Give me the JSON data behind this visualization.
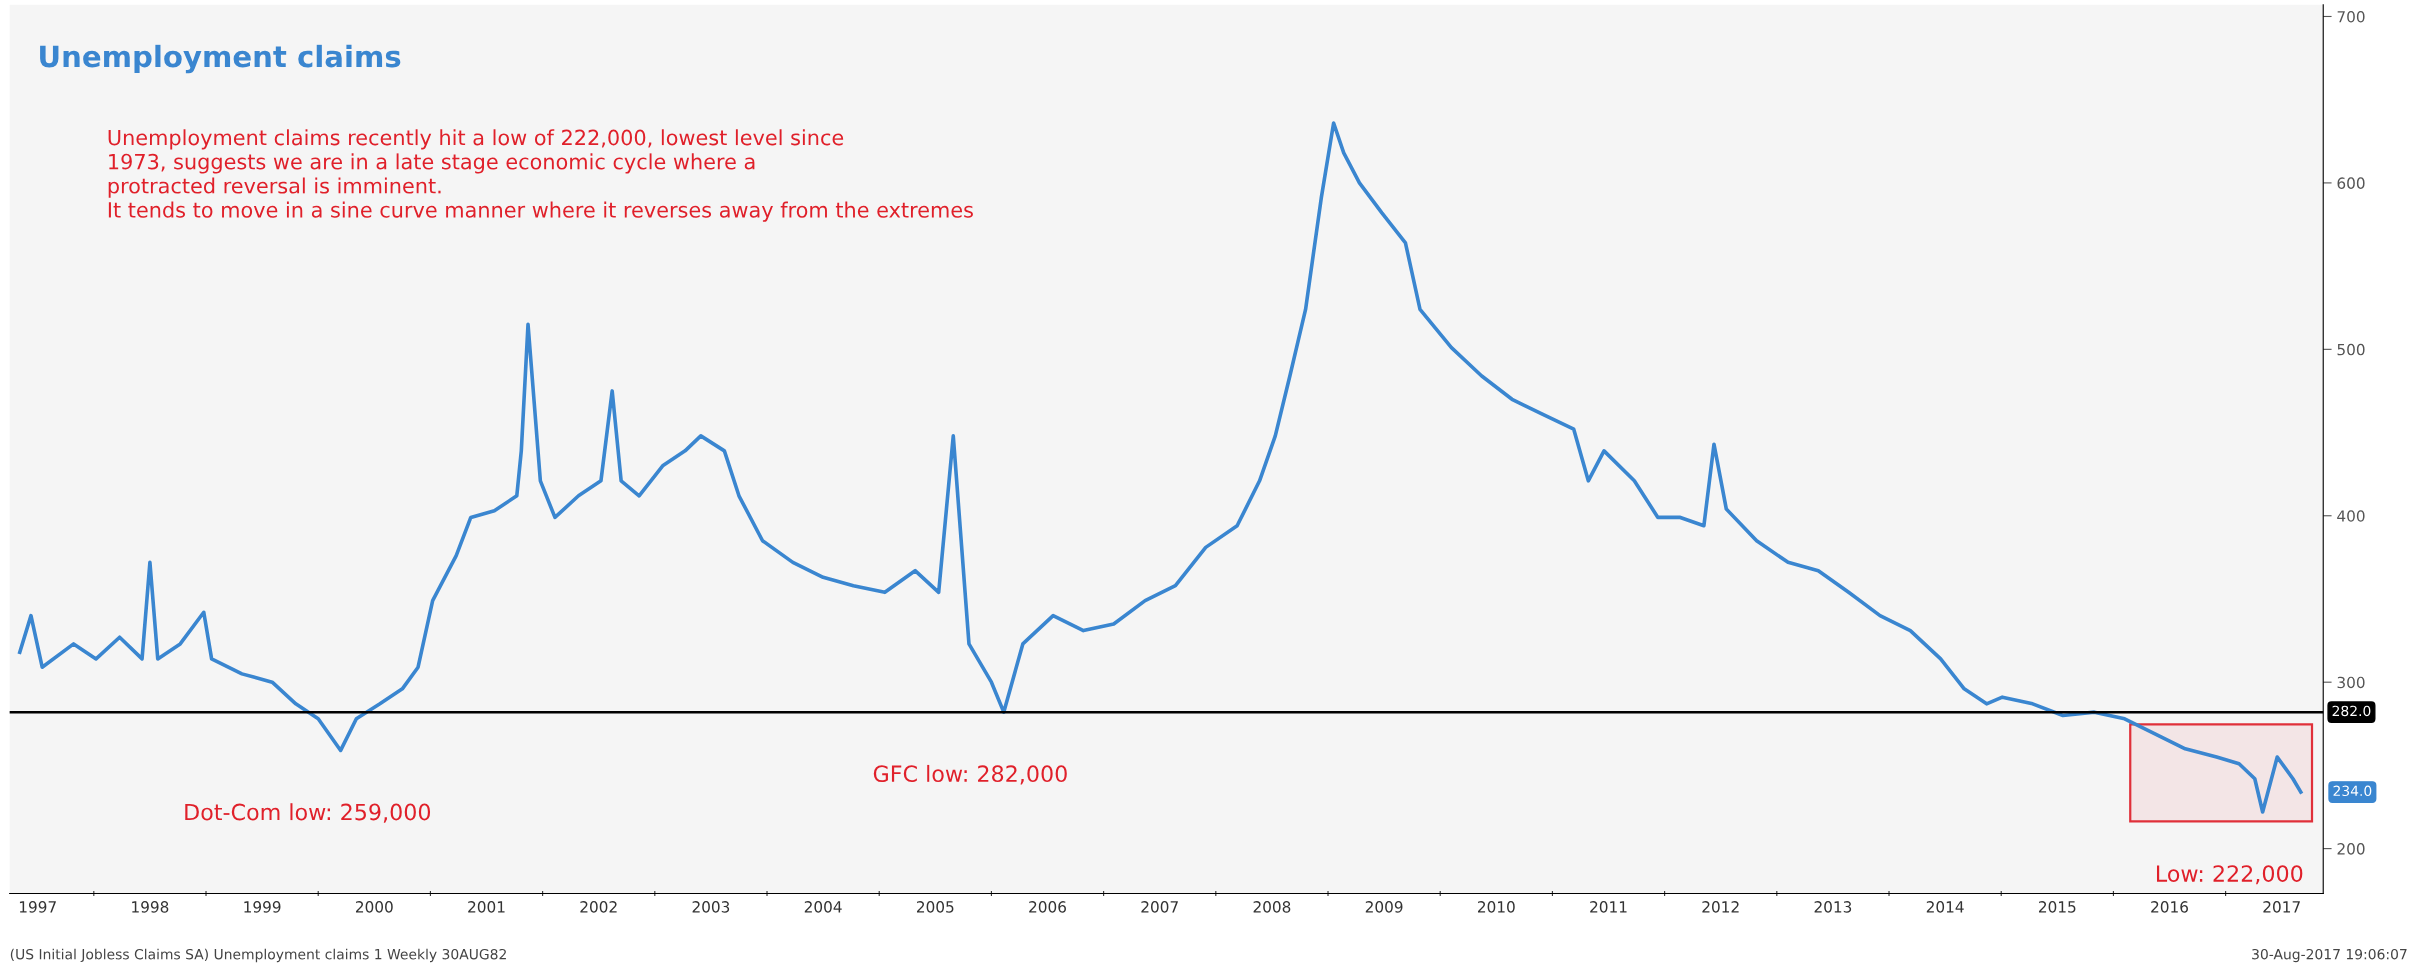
{
  "chart_data": {
    "type": "line",
    "title": "Unemployment claims",
    "x": [
      1997.34,
      1997.44,
      1997.54,
      1997.82,
      1998.02,
      1998.23,
      1998.43,
      1998.5,
      1998.57,
      1998.77,
      1998.98,
      1999.05,
      1999.32,
      1999.59,
      1999.8,
      2000.0,
      2000.2,
      2000.34,
      2000.55,
      2000.75,
      2000.89,
      2001.02,
      2001.23,
      2001.36,
      2001.57,
      2001.77,
      2001.81,
      2001.87,
      2001.98,
      2002.11,
      2002.32,
      2002.52,
      2002.62,
      2002.7,
      2002.86,
      2003.07,
      2003.27,
      2003.41,
      2003.62,
      2003.75,
      2003.96,
      2004.23,
      2004.5,
      2004.77,
      2005.05,
      2005.32,
      2005.53,
      2005.66,
      2005.8,
      2006.0,
      2006.11,
      2006.28,
      2006.55,
      2006.82,
      2007.09,
      2007.37,
      2007.64,
      2007.91,
      2008.19,
      2008.39,
      2008.53,
      2008.66,
      2008.8,
      2008.94,
      2009.05,
      2009.14,
      2009.28,
      2009.48,
      2009.69,
      2009.82,
      2010.1,
      2010.37,
      2010.64,
      2010.91,
      2011.19,
      2011.32,
      2011.46,
      2011.73,
      2011.94,
      2012.14,
      2012.35,
      2012.44,
      2012.55,
      2012.82,
      2013.1,
      2013.37,
      2013.64,
      2013.92,
      2014.19,
      2014.46,
      2014.67,
      2014.87,
      2015.01,
      2015.28,
      2015.55,
      2015.83,
      2016.1,
      2016.37,
      2016.64,
      2016.92,
      2017.12,
      2017.26,
      2017.33,
      2017.46,
      2017.6,
      2017.67
    ],
    "series": [
      {
        "color": "#3a86d0",
        "values": [
          318,
          340,
          309,
          323,
          314,
          327,
          314,
          372,
          314,
          323,
          342,
          314,
          305,
          300,
          287,
          278,
          259,
          278,
          287,
          296,
          309,
          349,
          376,
          399,
          403,
          412,
          439,
          515,
          421,
          399,
          412,
          421,
          475,
          421,
          412,
          430,
          439,
          448,
          439,
          412,
          385,
          372,
          363,
          358,
          354,
          367,
          354,
          448,
          323,
          300,
          282,
          323,
          340,
          331,
          335,
          349,
          358,
          381,
          394,
          421,
          448,
          484,
          524,
          591,
          636,
          618,
          600,
          582,
          564,
          524,
          501,
          484,
          470,
          461,
          452,
          421,
          439,
          421,
          399,
          399,
          394,
          443,
          404,
          385,
          372,
          367,
          354,
          340,
          331,
          314,
          296,
          287,
          291,
          287,
          280,
          282,
          278,
          269,
          260,
          255,
          251,
          242,
          222,
          255,
          242,
          234
        ]
      }
    ],
    "xlim": [
      1997.25,
      2017.87
    ],
    "ylim": [
      173,
      707
    ],
    "yticks": [
      200,
      300,
      400,
      500,
      600,
      700
    ],
    "xticks": [
      {
        "value": 1997.5,
        "label": "1997"
      },
      {
        "value": 1998,
        "label": null
      },
      {
        "value": 1998.5,
        "label": "1998"
      },
      {
        "value": 1999,
        "label": null
      },
      {
        "value": 1999.5,
        "label": "1999"
      },
      {
        "value": 2000,
        "label": null
      },
      {
        "value": 2000.5,
        "label": "2000"
      },
      {
        "value": 2001,
        "label": null
      },
      {
        "value": 2001.5,
        "label": "2001"
      },
      {
        "value": 2002,
        "label": null
      },
      {
        "value": 2002.5,
        "label": "2002"
      },
      {
        "value": 2003,
        "label": null
      },
      {
        "value": 2003.5,
        "label": "2003"
      },
      {
        "value": 2004,
        "label": null
      },
      {
        "value": 2004.5,
        "label": "2004"
      },
      {
        "value": 2005,
        "label": null
      },
      {
        "value": 2005.5,
        "label": "2005"
      },
      {
        "value": 2006,
        "label": null
      },
      {
        "value": 2006.5,
        "label": "2006"
      },
      {
        "value": 2007,
        "label": null
      },
      {
        "value": 2007.5,
        "label": "2007"
      },
      {
        "value": 2008,
        "label": null
      },
      {
        "value": 2008.5,
        "label": "2008"
      },
      {
        "value": 2009,
        "label": null
      },
      {
        "value": 2009.5,
        "label": "2009"
      },
      {
        "value": 2010,
        "label": null
      },
      {
        "value": 2010.5,
        "label": "2010"
      },
      {
        "value": 2011,
        "label": null
      },
      {
        "value": 2011.5,
        "label": "2011"
      },
      {
        "value": 2012,
        "label": null
      },
      {
        "value": 2012.5,
        "label": "2012"
      },
      {
        "value": 2013,
        "label": null
      },
      {
        "value": 2013.5,
        "label": "2013"
      },
      {
        "value": 2014,
        "label": null
      },
      {
        "value": 2014.5,
        "label": "2014"
      },
      {
        "value": 2015,
        "label": null
      },
      {
        "value": 2015.5,
        "label": "2015"
      },
      {
        "value": 2016,
        "label": null
      },
      {
        "value": 2016.5,
        "label": "2016"
      },
      {
        "value": 2017,
        "label": null
      },
      {
        "value": 2017.5,
        "label": "2017"
      }
    ],
    "ref_lines": [
      {
        "axis": "y",
        "value": 282,
        "label": "282.0",
        "color": "#000000"
      }
    ],
    "bands": [
      {
        "axis": "x",
        "from": 2016.15,
        "to": 2017.77,
        "color": "#e0303a"
      }
    ],
    "annotations": [
      "Unemployment claims recently hit a low of 222,000, lowest level since\n1973, suggests we are in a late stage economic cycle where a\nprotracted reversal is imminent.\nIt tends to move in a sine curve manner where it reverses away from the extremes",
      {
        "text": "Dot-Com low: 259,000",
        "x": 2000.2,
        "y": 259
      },
      {
        "text": "GFC low: 282,000",
        "x": 2006.11,
        "y": 282
      },
      {
        "text": "Low: 222,000",
        "x": 2017.33,
        "y": 222
      },
      {
        "text": "234.0",
        "x": 2017.67,
        "y": 234
      },
      "(US Initial Jobless Claims SA) Unemployment claims 1 Weekly 30AUG82",
      "30-Aug-2017 19:06:07"
    ],
    "grid": false,
    "legend": false
  }
}
